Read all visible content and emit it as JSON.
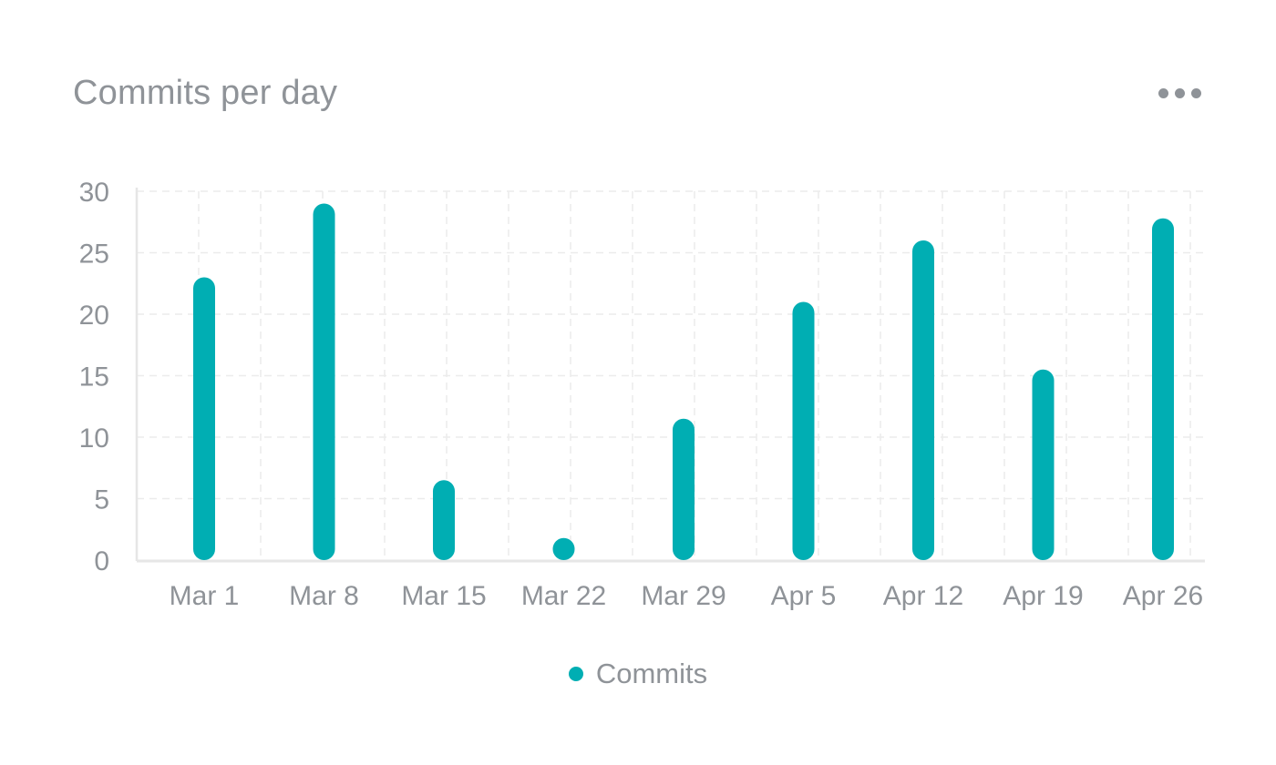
{
  "card": {
    "title": "Commits per day",
    "menu_icon": "more-horizontal-icon"
  },
  "colors": {
    "series": "#00aeb3",
    "text": "#8f9398",
    "grid": "#ececec",
    "axis": "#e6e6e6"
  },
  "chart_data": {
    "type": "bar",
    "title": "Commits per day",
    "xlabel": "",
    "ylabel": "",
    "categories": [
      "Mar 1",
      "Mar 8",
      "Mar 15",
      "Mar 22",
      "Mar 29",
      "Apr 5",
      "Apr 12",
      "Apr 19",
      "Apr 26"
    ],
    "series": [
      {
        "name": "Commits",
        "values": [
          23,
          29,
          6.5,
          1.8,
          11.5,
          21,
          26,
          15.5,
          27.8
        ]
      }
    ],
    "ylim": [
      0,
      30
    ],
    "yticks": [
      0,
      5,
      10,
      15,
      20,
      25,
      30
    ],
    "grid": true,
    "grid_style": "dashed",
    "legend_position": "bottom-center",
    "bar_style": "rounded"
  },
  "legend": {
    "items": [
      {
        "label": "Commits"
      }
    ]
  }
}
